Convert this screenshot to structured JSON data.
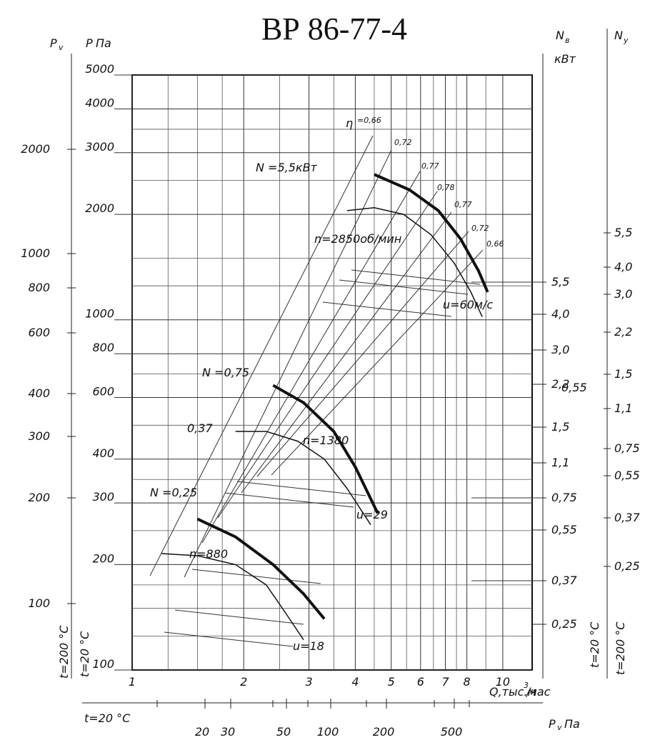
{
  "chart_data": {
    "type": "line",
    "title": "ВР 86-77-4",
    "ylabel_left_outer": "P",
    "ylabel_left_outer_sub": "v",
    "ylabel_left_inner": "P",
    "ylabel_left_inner_unit": "Па",
    "ylabel_right_inner": "N",
    "ylabel_right_inner_sub": "в",
    "ylabel_right_inner_unit": "кВт",
    "ylabel_right_outer": "N",
    "ylabel_right_outer_sub": "у",
    "xlabel": "Q,тыс.м",
    "xlabel_sup": "3",
    "xlabel_tail": "/час",
    "x_scale": "log",
    "y_scale": "log",
    "xlim": [
      1,
      12
    ],
    "ylim": [
      100,
      5000
    ],
    "grid": true,
    "x_ticks": [
      "1",
      "2",
      "3",
      "4",
      "5",
      "6",
      "7",
      "8",
      "10"
    ],
    "y_ticks_inner": [
      "100",
      "200",
      "300",
      "400",
      "600",
      "800",
      "1000",
      "2000",
      "3000",
      "4000",
      "5000"
    ],
    "y_ticks_outer": [
      "100",
      "200",
      "300",
      "400",
      "600",
      "800",
      "1000",
      "2000"
    ],
    "right_inner_ticks": [
      "5,5",
      "4,0",
      "3,0",
      "2,2",
      "1,5",
      "1,1",
      "0,75",
      "0,55",
      "0,37",
      "0,25"
    ],
    "right_outer_ticks": [
      "5,5",
      "4,0",
      "3,0",
      "2,2",
      "1,5",
      "1,1",
      "0,75",
      "0,55",
      "0,37",
      "0,25"
    ],
    "right_inner_extra": "0,55",
    "dynamic_pressure_axis_label": "P",
    "dynamic_pressure_axis_sub": "v",
    "dynamic_pressure_axis_unit": "Па",
    "dynamic_pressure_ticks": [
      "20",
      "30",
      "50",
      "100",
      "200",
      "500"
    ],
    "temp_left_inner": "t=20 °C",
    "temp_left_outer": "t=200 °C",
    "temp_right_inner": "t=20 °C",
    "temp_right_outer": "t=200 °C",
    "temp_bottom": "t=20 °C",
    "efficiency_symbol": "η",
    "efficiency_labels": [
      "=0,66",
      "0,72",
      "0,77",
      "0,78",
      "0,77",
      "0,72",
      "0,66"
    ],
    "series": [
      {
        "name": "n=2850об/мин",
        "velocity_label": "u=60м/с",
        "power_label": "N =5,5кВт",
        "q": [
          3.8,
          4.5,
          5.4,
          6.4,
          7.4,
          8.2,
          8.8
        ],
        "p": [
          2050,
          2090,
          2000,
          1750,
          1450,
          1200,
          1020
        ],
        "power_q": [
          4.5,
          5.6,
          6.7,
          7.7,
          8.6,
          9.1
        ],
        "power_p": [
          2600,
          2350,
          2050,
          1700,
          1380,
          1200
        ]
      },
      {
        "name": "n=1380",
        "velocity_label": "u=29",
        "power_labels": [
          "N =0,75",
          "0,37"
        ],
        "q": [
          1.9,
          2.3,
          2.8,
          3.3,
          3.8,
          4.4
        ],
        "p": [
          480,
          480,
          450,
          400,
          330,
          260
        ],
        "power_q": [
          2.4,
          2.9,
          3.5,
          4.0,
          4.6
        ],
        "power_p": [
          650,
          580,
          480,
          380,
          280
        ]
      },
      {
        "name": "n=880",
        "velocity_label": "u=18",
        "power_labels": [
          "N =0,25"
        ],
        "q": [
          1.2,
          1.5,
          1.9,
          2.3,
          2.6,
          2.9
        ],
        "p": [
          215,
          212,
          200,
          175,
          145,
          122
        ],
        "power_q": [
          1.5,
          1.9,
          2.4,
          2.9,
          3.3
        ],
        "power_p": [
          270,
          240,
          200,
          165,
          140
        ]
      }
    ]
  }
}
